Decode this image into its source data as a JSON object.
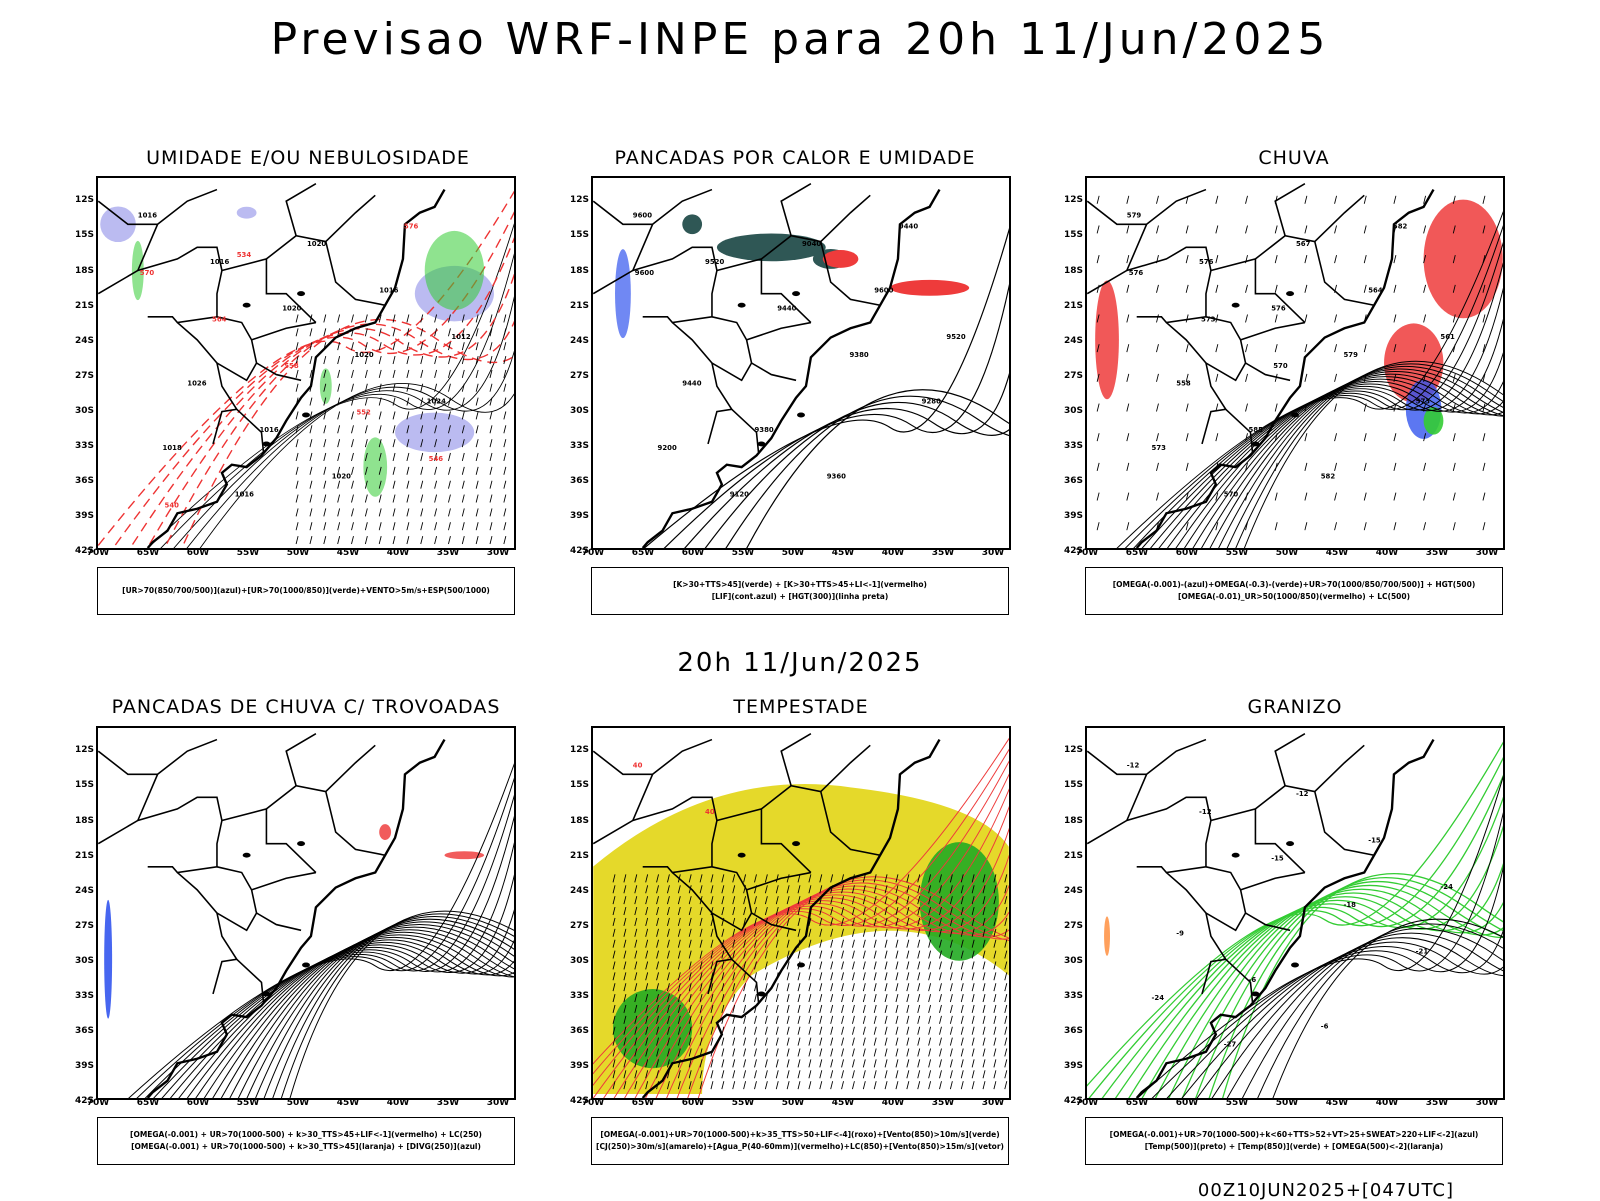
{
  "title": "Previsao WRF-INPE  para 20h 11/Jun/2025",
  "mid_title": "20h 11/Jun/2025",
  "footer": "00Z10JUN2025+[047UTC]",
  "lat_labels": [
    "12S",
    "15S",
    "18S",
    "21S",
    "24S",
    "27S",
    "30S",
    "33S",
    "36S",
    "39S",
    "42S"
  ],
  "lon_labels": [
    "70W",
    "65W",
    "60W",
    "55W",
    "50W",
    "45W",
    "40W",
    "35W",
    "30W"
  ],
  "panels": [
    {
      "title": "UMIDADE E/OU NEBULOSIDADE",
      "legend": [
        "[UR>70(850/700/500)](azul)+[UR>70(1000/850)](verde)+VENTO>5m/s+ESP(500/1000)"
      ],
      "labels": [
        "1016",
        "1016",
        "1020",
        "1020",
        "1024",
        "1018",
        "1016",
        "1020",
        "1016",
        "1012",
        "1026",
        "1016",
        "1020",
        "576",
        "570",
        "564",
        "558",
        "552",
        "546",
        "540",
        "534"
      ]
    },
    {
      "title": "PANCADAS POR CALOR E UMIDADE",
      "legend": [
        "[K>30+TTS>45](verde) + [K>30+TTS>45+LI<-1](vermelho)",
        "[LIF](cont.azul) + [HGT(300)](linha preta)"
      ],
      "labels": [
        "9600",
        "9520",
        "9440",
        "9380",
        "9280",
        "9200",
        "9120",
        "9040",
        "9600",
        "9520",
        "9440",
        "9380",
        "9360",
        "9440",
        "9600"
      ]
    },
    {
      "title": "CHUVA",
      "legend": [
        "[OMEGA(-0.001)-(azul)+OMEGA(-0.3)-(verde)+UR>70(1000/850/700/500)] + HGT(500)",
        "[OMEGA(-0.01)_UR>50(1000/850)(vermelho) + LC(500)"
      ],
      "labels": [
        "579",
        "576",
        "576",
        "579",
        "573",
        "573",
        "570",
        "567",
        "564",
        "561",
        "558",
        "585",
        "582",
        "582",
        "576",
        "573",
        "570"
      ]
    },
    {
      "title": "PANCADAS DE CHUVA C/ TROVOADAS",
      "legend": [
        "[OMEGA(-0.001) + UR>70(1000-500) + k>30_TTS>45+LIF<-1](vermelho) + LC(250)",
        "[OMEGA(-0.001) + UR>70(1000-500) + k>30_TTS>45](laranja) + [DIVG(250)](azul)"
      ],
      "labels": []
    },
    {
      "title": "TEMPESTADE",
      "legend": [
        "[OMEGA(-0.001)+UR>70(1000-500)+k>35_TTS>50+LIF<-4](roxo)+[Vento(850)>10m/s](verde)",
        "[CJ(250)>30m/s](amarelo)+[Agua_P(40-60mm)](vermelho)+LC(850)+[Vento(850)>15m/s](vetor)"
      ],
      "labels": [
        "40",
        "40"
      ]
    },
    {
      "title": "GRANIZO",
      "legend": [
        "[OMEGA(-0.001)+UR>70(1000-500)+k<60+TTS>52+VT>25+SWEAT>220+LIF<-2](azul)",
        "[Temp(500)](preto) + [Temp(850)](verde) + [OMEGA(500)<-2](laranja)"
      ],
      "labels": [
        "-12",
        "-12",
        "-15",
        "-18",
        "-21",
        "-24",
        "-27",
        "-12",
        "-15",
        "-24",
        "-9",
        "-6",
        "-6"
      ]
    }
  ]
}
